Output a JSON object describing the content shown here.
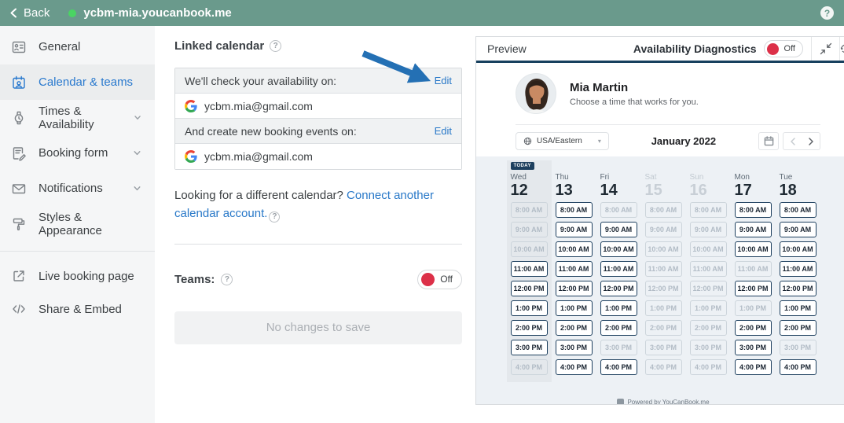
{
  "topbar": {
    "back_label": "Back",
    "title": "ycbm-mia.youcanbook.me",
    "help_label": "?"
  },
  "sidebar": {
    "items": [
      {
        "label": "General",
        "icon": "general-icon",
        "selected": false,
        "chevron": false
      },
      {
        "label": "Calendar & teams",
        "icon": "calendar-teams-icon",
        "selected": true,
        "chevron": false
      },
      {
        "label": "Times & Availability",
        "icon": "clock-icon",
        "selected": false,
        "chevron": true
      },
      {
        "label": "Booking form",
        "icon": "booking-form-icon",
        "selected": false,
        "chevron": true
      },
      {
        "label": "Notifications",
        "icon": "mail-icon",
        "selected": false,
        "chevron": true
      },
      {
        "label": "Styles & Appearance",
        "icon": "paint-roller-icon",
        "selected": false,
        "chevron": false
      }
    ],
    "footer_items": [
      {
        "label": "Live booking page",
        "icon": "external-link-icon"
      },
      {
        "label": "Share & Embed",
        "icon": "code-icon"
      }
    ]
  },
  "main": {
    "section_title": "Linked calendar",
    "check_label": "We'll check your availability on:",
    "check_edit": "Edit",
    "check_account": "ycbm.mia@gmail.com",
    "create_label": "And create new booking events on:",
    "create_edit": "Edit",
    "create_account": "ycbm.mia@gmail.com",
    "different_text": "Looking for a different calendar? ",
    "connect_link": "Connect another calendar account.",
    "teams_label": "Teams:",
    "teams_toggle": "Off",
    "save_button": "No changes to save"
  },
  "preview": {
    "title": "Preview",
    "diagnostics_label": "Availability Diagnostics",
    "diagnostics_toggle": "Off",
    "profile": {
      "name": "Mia Martin",
      "tagline": "Choose a time that works for you."
    },
    "timezone": "USA/Eastern",
    "month": "January 2022",
    "today_badge": "TODAY",
    "times": [
      "8:00 AM",
      "9:00 AM",
      "10:00 AM",
      "11:00 AM",
      "12:00 PM",
      "1:00 PM",
      "2:00 PM",
      "3:00 PM",
      "4:00 PM"
    ],
    "days": [
      {
        "dow": "Wed",
        "date": "12",
        "today": true,
        "muted": false,
        "slots": [
          false,
          false,
          false,
          true,
          true,
          true,
          true,
          true,
          false
        ]
      },
      {
        "dow": "Thu",
        "date": "13",
        "today": false,
        "muted": false,
        "slots": [
          true,
          true,
          true,
          true,
          true,
          true,
          true,
          true,
          true
        ]
      },
      {
        "dow": "Fri",
        "date": "14",
        "today": false,
        "muted": false,
        "slots": [
          false,
          true,
          true,
          true,
          true,
          true,
          true,
          false,
          true
        ]
      },
      {
        "dow": "Sat",
        "date": "15",
        "today": false,
        "muted": true,
        "slots": [
          false,
          false,
          false,
          false,
          false,
          false,
          false,
          false,
          false
        ]
      },
      {
        "dow": "Sun",
        "date": "16",
        "today": false,
        "muted": true,
        "slots": [
          false,
          false,
          false,
          false,
          false,
          false,
          false,
          false,
          false
        ]
      },
      {
        "dow": "Mon",
        "date": "17",
        "today": false,
        "muted": false,
        "slots": [
          true,
          true,
          true,
          false,
          true,
          false,
          true,
          true,
          true
        ]
      },
      {
        "dow": "Tue",
        "date": "18",
        "today": false,
        "muted": false,
        "slots": [
          true,
          true,
          true,
          true,
          true,
          true,
          true,
          false,
          true
        ]
      }
    ],
    "footer": "Powered by YouCanBook.me"
  },
  "colors": {
    "topbar_teal": "#6a9a8c",
    "online_green": "#4ad463",
    "accent_blue": "#2878c8",
    "navy": "#1d3f5e",
    "toggle_red": "#dc3048",
    "grid_bg": "#edf1f5"
  }
}
